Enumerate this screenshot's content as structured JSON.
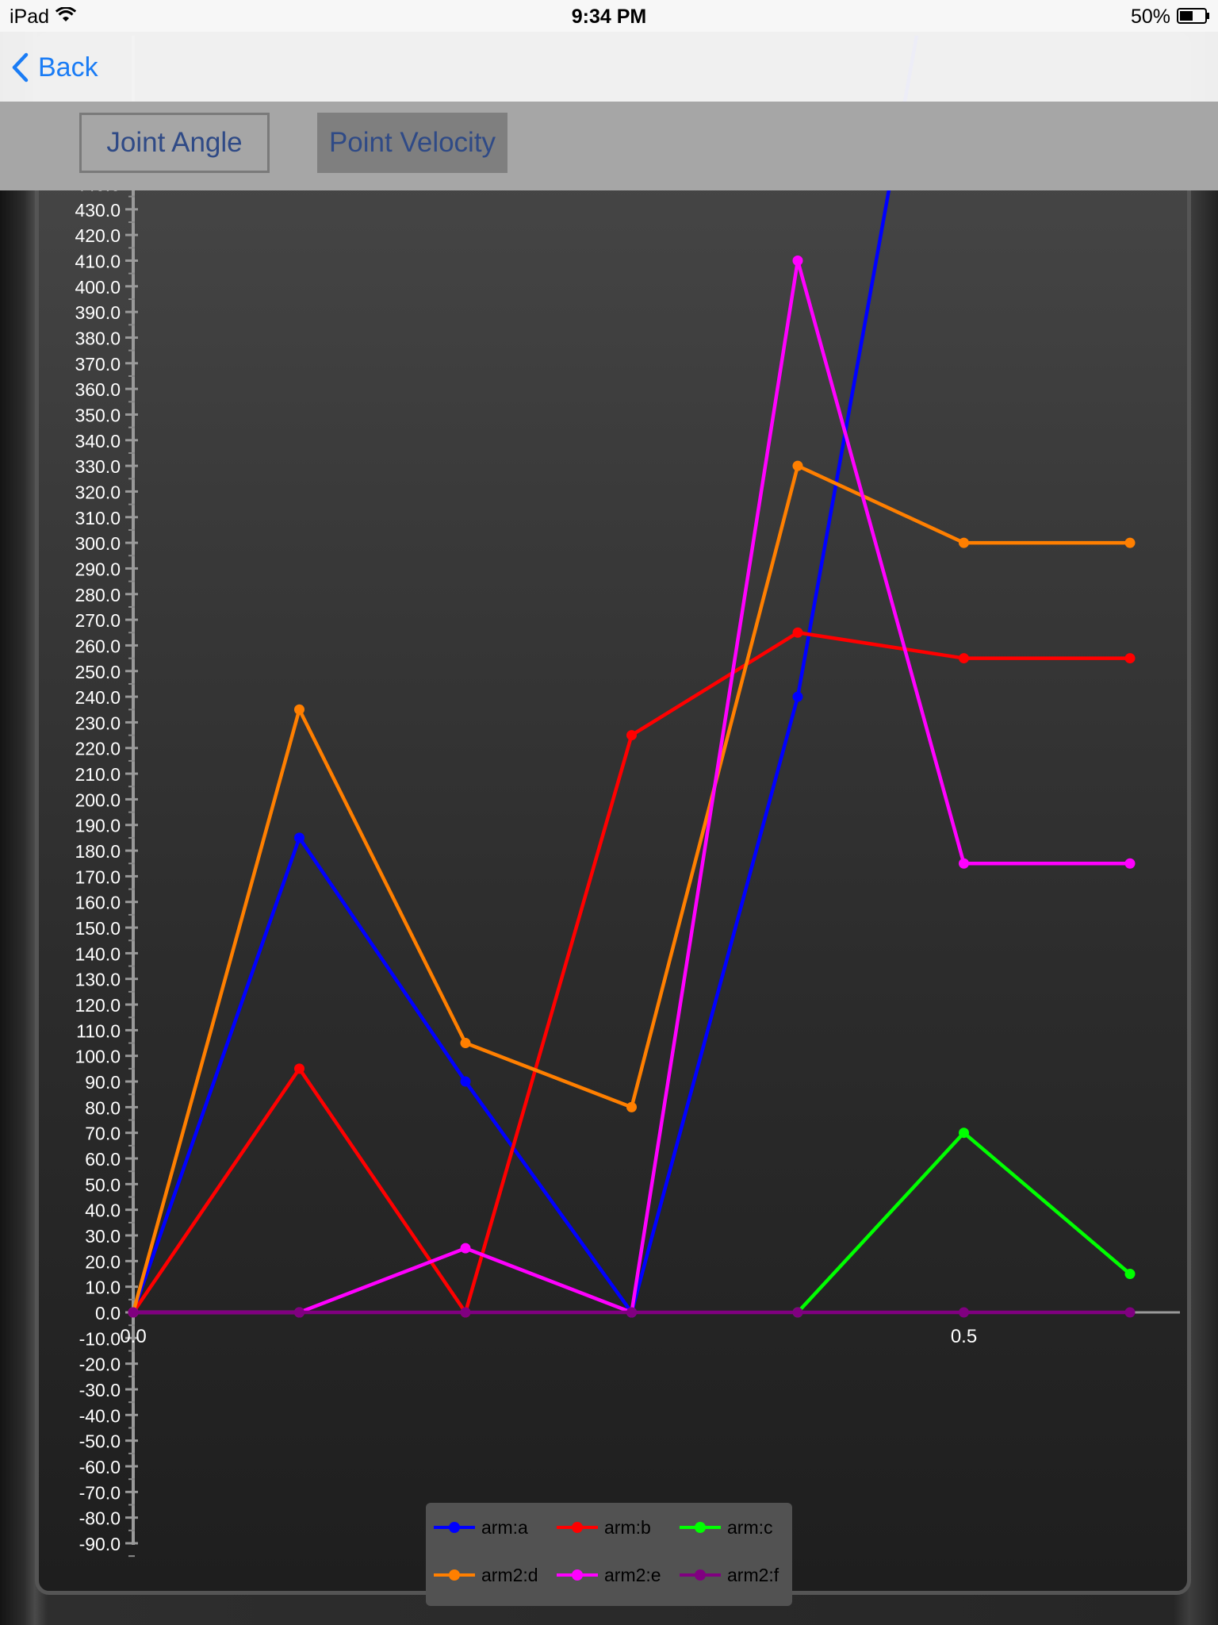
{
  "status_bar": {
    "device": "iPad",
    "time": "9:34 PM",
    "battery": "50%"
  },
  "nav": {
    "back_label": "Back"
  },
  "toolbar": {
    "joint_angle_label": "Joint Angle",
    "point_velocity_label": "Point Velocity"
  },
  "colors": {
    "accent": "#1a7cf5",
    "toolbar_text": "#2f4a86"
  },
  "chart_data": {
    "type": "line",
    "title": "",
    "xlabel": "",
    "ylabel": "",
    "x": [
      0.0,
      0.1,
      0.2,
      0.3,
      0.4,
      0.5,
      0.6
    ],
    "x_ticks": [
      {
        "value": 0.0,
        "label": "0.0"
      },
      {
        "value": 0.5,
        "label": "0.5"
      }
    ],
    "y_range": [
      -90,
      440
    ],
    "y_tick_step": 10,
    "y_tick_decimals": 1,
    "grid": false,
    "legend_position": "bottom-center",
    "series": [
      {
        "name": "arm:a",
        "color": "#0000ff",
        "values": [
          0,
          185,
          90,
          0,
          240,
          600,
          null
        ]
      },
      {
        "name": "arm:b",
        "color": "#ff0000",
        "values": [
          0,
          95,
          0,
          225,
          265,
          255,
          255
        ]
      },
      {
        "name": "arm:c",
        "color": "#00ff00",
        "values": [
          null,
          null,
          null,
          null,
          0,
          70,
          15
        ]
      },
      {
        "name": "arm2:d",
        "color": "#ff7f00",
        "values": [
          0,
          235,
          105,
          80,
          330,
          300,
          300
        ]
      },
      {
        "name": "arm2:e",
        "color": "#ff00ff",
        "values": [
          0,
          0,
          25,
          0,
          410,
          175,
          175
        ]
      },
      {
        "name": "arm2:f",
        "color": "#800080",
        "values": [
          0,
          0,
          0,
          0,
          0,
          0,
          0
        ]
      }
    ]
  }
}
